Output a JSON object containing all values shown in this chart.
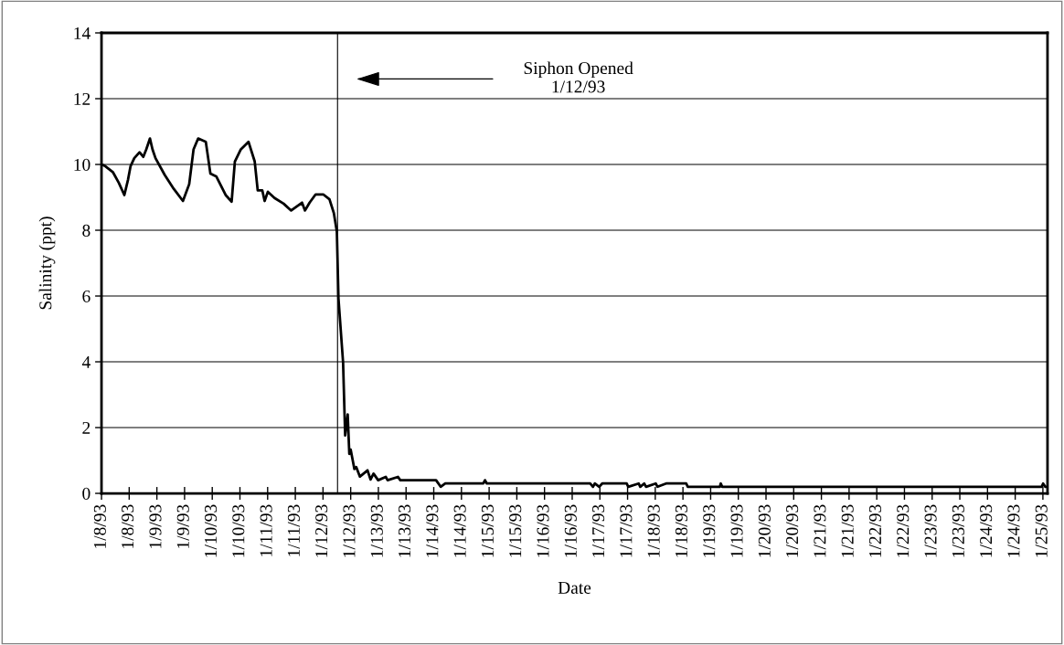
{
  "chart_data": {
    "type": "line",
    "xlabel": "Date",
    "ylabel": "Salinity (ppt)",
    "x": [
      "1993-01-08T00:00",
      "1993-01-08T01:36",
      "1993-01-08T04:54",
      "1993-01-08T07:30",
      "1993-01-08T09:54",
      "1993-01-08T11:30",
      "1993-01-08T12:36",
      "1993-01-08T14:12",
      "1993-01-08T16:30",
      "1993-01-08T18:06",
      "1993-01-08T19:24",
      "1993-01-08T21:00",
      "1993-01-08T22:06",
      "1993-01-08T23:24",
      "1993-01-09T03:24",
      "1993-01-09T07:18",
      "1993-01-09T11:18",
      "1993-01-09T14:00",
      "1993-01-09T15:54",
      "1993-01-09T17:54",
      "1993-01-09T21:12",
      "1993-01-09T23:12",
      "1993-01-10T01:48",
      "1993-01-10T05:48",
      "1993-01-10T08:24",
      "1993-01-10T09:48",
      "1993-01-10T12:24",
      "1993-01-10T15:42",
      "1993-01-10T18:24",
      "1993-01-10T19:42",
      "1993-01-10T21:42",
      "1993-01-10T22:42",
      "1993-01-11T00:06",
      "1993-01-11T03:00",
      "1993-01-11T06:54",
      "1993-01-11T10:12",
      "1993-01-11T14:54",
      "1993-01-11T16:12",
      "1993-01-11T18:12",
      "1993-01-11T20:48",
      "1993-01-12T00:06",
      "1993-01-12T02:48",
      "1993-01-12T04:42",
      "1993-01-12T06:00",
      "1993-01-12T06:42",
      "1993-01-12T08:42",
      "1993-01-12T09:36",
      "1993-01-12T10:42",
      "1993-01-12T11:24",
      "1993-01-12T12:00",
      "1993-01-12T13:36",
      "1993-01-12T14:24",
      "1993-01-12T16:00",
      "1993-01-12T19:18",
      "1993-01-12T20:36",
      "1993-01-12T21:54",
      "1993-01-12T23:54",
      "1993-01-13T03:12",
      "1993-01-13T04:00",
      "1993-01-13T08:30",
      "1993-01-13T09:30",
      "1993-01-14T01:00",
      "1993-01-14T03:00",
      "1993-01-14T05:00",
      "1993-01-14T21:30",
      "1993-01-14T22:12",
      "1993-01-14T23:00",
      "1993-01-16T19:48",
      "1993-01-16T21:00",
      "1993-01-16T21:48",
      "1993-01-16T23:42",
      "1993-01-17T01:00",
      "1993-01-17T11:36",
      "1993-01-17T12:18",
      "1993-01-17T16:48",
      "1993-01-17T17:30",
      "1993-01-17T19:12",
      "1993-01-17T20:00",
      "1993-01-18T00:12",
      "1993-01-18T01:00",
      "1993-01-18T04:42",
      "1993-01-18T13:24",
      "1993-01-18T14:06",
      "1993-01-19T04:00",
      "1993-01-19T04:24",
      "1993-01-19T05:00",
      "1993-01-24T23:30",
      "1993-01-25T00:06",
      "1993-01-25T01:00",
      "1993-01-25T02:00"
    ],
    "series": [
      {
        "color": "#000000",
        "values": [
          10.0,
          9.95,
          9.77,
          9.44,
          9.07,
          9.54,
          9.95,
          10.19,
          10.37,
          10.23,
          10.46,
          10.79,
          10.46,
          10.19,
          9.68,
          9.26,
          8.89,
          9.4,
          10.46,
          10.79,
          10.69,
          9.72,
          9.63,
          9.07,
          8.87,
          10.09,
          10.46,
          10.69,
          10.09,
          9.21,
          9.21,
          8.89,
          9.17,
          8.98,
          8.81,
          8.6,
          8.84,
          8.6,
          8.84,
          9.09,
          9.09,
          8.94,
          8.52,
          7.96,
          5.93,
          3.98,
          1.76,
          2.4,
          1.2,
          1.33,
          0.74,
          0.8,
          0.51,
          0.7,
          0.42,
          0.6,
          0.4,
          0.5,
          0.4,
          0.5,
          0.4,
          0.4,
          0.2,
          0.3,
          0.3,
          0.4,
          0.3,
          0.3,
          0.2,
          0.3,
          0.2,
          0.3,
          0.3,
          0.2,
          0.3,
          0.2,
          0.3,
          0.2,
          0.3,
          0.2,
          0.3,
          0.3,
          0.2,
          0.2,
          0.3,
          0.2,
          0.2,
          0.3,
          0.2,
          0.2
        ]
      }
    ],
    "xlim": [
      "1993-01-08T00:00",
      "1993-01-25T02:00"
    ],
    "ylim": [
      0,
      14
    ],
    "yticks": [
      0,
      2,
      4,
      6,
      8,
      10,
      12,
      14
    ],
    "xticks": [
      {
        "value": "1993-01-08T00:00",
        "label": "1/8/93"
      },
      {
        "value": "1993-01-08T12:00",
        "label": "1/8/93"
      },
      {
        "value": "1993-01-09T00:00",
        "label": "1/9/93"
      },
      {
        "value": "1993-01-09T12:00",
        "label": "1/9/93"
      },
      {
        "value": "1993-01-10T00:00",
        "label": "1/10/93"
      },
      {
        "value": "1993-01-10T12:00",
        "label": "1/10/93"
      },
      {
        "value": "1993-01-11T00:00",
        "label": "1/11/93"
      },
      {
        "value": "1993-01-11T12:00",
        "label": "1/11/93"
      },
      {
        "value": "1993-01-12T00:00",
        "label": "1/12/93"
      },
      {
        "value": "1993-01-12T12:00",
        "label": "1/12/93"
      },
      {
        "value": "1993-01-13T00:00",
        "label": "1/13/93"
      },
      {
        "value": "1993-01-13T12:00",
        "label": "1/13/93"
      },
      {
        "value": "1993-01-14T00:00",
        "label": "1/14/93"
      },
      {
        "value": "1993-01-14T12:00",
        "label": "1/14/93"
      },
      {
        "value": "1993-01-15T00:00",
        "label": "1/15/93"
      },
      {
        "value": "1993-01-15T12:00",
        "label": "1/15/93"
      },
      {
        "value": "1993-01-16T00:00",
        "label": "1/16/93"
      },
      {
        "value": "1993-01-16T12:00",
        "label": "1/16/93"
      },
      {
        "value": "1993-01-17T00:00",
        "label": "1/17/93"
      },
      {
        "value": "1993-01-17T12:00",
        "label": "1/17/93"
      },
      {
        "value": "1993-01-18T00:00",
        "label": "1/18/93"
      },
      {
        "value": "1993-01-18T12:00",
        "label": "1/18/93"
      },
      {
        "value": "1993-01-19T00:00",
        "label": "1/19/93"
      },
      {
        "value": "1993-01-19T12:00",
        "label": "1/19/93"
      },
      {
        "value": "1993-01-20T00:00",
        "label": "1/20/93"
      },
      {
        "value": "1993-01-20T12:00",
        "label": "1/20/93"
      },
      {
        "value": "1993-01-21T00:00",
        "label": "1/21/93"
      },
      {
        "value": "1993-01-21T12:00",
        "label": "1/21/93"
      },
      {
        "value": "1993-01-22T00:00",
        "label": "1/22/93"
      },
      {
        "value": "1993-01-22T12:00",
        "label": "1/22/93"
      },
      {
        "value": "1993-01-23T00:00",
        "label": "1/23/93"
      },
      {
        "value": "1993-01-23T12:00",
        "label": "1/23/93"
      },
      {
        "value": "1993-01-24T00:00",
        "label": "1/24/93"
      },
      {
        "value": "1993-01-24T12:00",
        "label": "1/24/93"
      },
      {
        "value": "1993-01-25T00:00",
        "label": "1/25/93"
      }
    ],
    "grid": "y",
    "ref_lines": [
      {
        "axis": "x",
        "value": "1993-01-12T06:18",
        "color": "#000000"
      }
    ],
    "annotations": [
      "Siphon Opened\n1/12/93"
    ]
  }
}
